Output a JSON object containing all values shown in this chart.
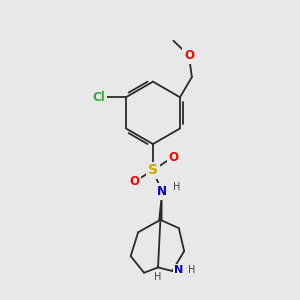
{
  "bg_color": "#e8e8e8",
  "bond_color": "#2a2a2a",
  "atom_colors": {
    "O": "#ff0000",
    "N": "#0000cc",
    "S": "#ccaa00",
    "Cl": "#33aa33",
    "H": "#444444"
  },
  "bond_lw": 1.3,
  "font_size_heavy": 8.5,
  "font_size_H": 7.0
}
